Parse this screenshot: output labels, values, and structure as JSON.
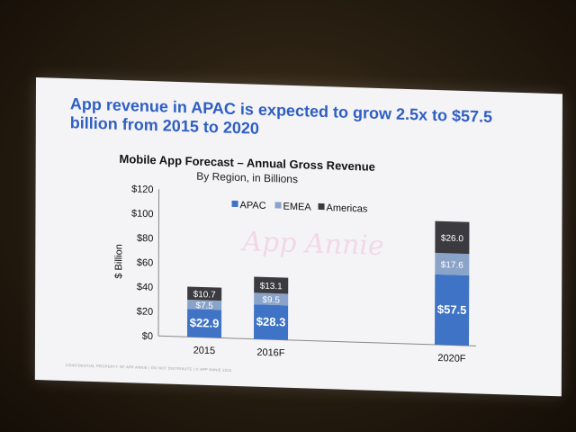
{
  "slide": {
    "headline": "App revenue in APAC is expected to grow 2.5x to $57.5 billion from 2015 to 2020",
    "watermark": "App Annie",
    "footer": "CONFIDENTIAL PROPERTY OF APP ANNIE  |  DO NOT DISTRIBUTE  |  © APP ANNIE 2016"
  },
  "colors": {
    "APAC": "#3f73c6",
    "EMEA": "#8aa3c9",
    "Americas": "#3a3a3f",
    "headline": "#2f5fc4"
  },
  "chart_data": {
    "type": "bar",
    "stacked": true,
    "title": "Mobile App Forecast – Annual Gross Revenue",
    "subtitle": "By Region, in Billions",
    "ylabel": "$ Billion",
    "xlabel": "",
    "ylim": [
      0,
      120
    ],
    "yticks": [
      "$0",
      "$20",
      "$40",
      "$60",
      "$80",
      "$100",
      "$120"
    ],
    "yticks_values": [
      0,
      20,
      40,
      60,
      80,
      100,
      120
    ],
    "categories": [
      "2015",
      "2016F",
      "2020F"
    ],
    "series": [
      {
        "name": "APAC",
        "values": [
          22.9,
          28.3,
          57.5
        ],
        "labels": [
          "$22.9",
          "$28.3",
          "$57.5"
        ]
      },
      {
        "name": "EMEA",
        "values": [
          7.5,
          9.5,
          17.6
        ],
        "labels": [
          "$7.5",
          "$9.5",
          "$17.6"
        ]
      },
      {
        "name": "Americas",
        "values": [
          10.7,
          13.1,
          26.0
        ],
        "labels": [
          "$10.7",
          "$13.1",
          "$26.0"
        ]
      }
    ],
    "legend_position": "top",
    "grid": false
  }
}
